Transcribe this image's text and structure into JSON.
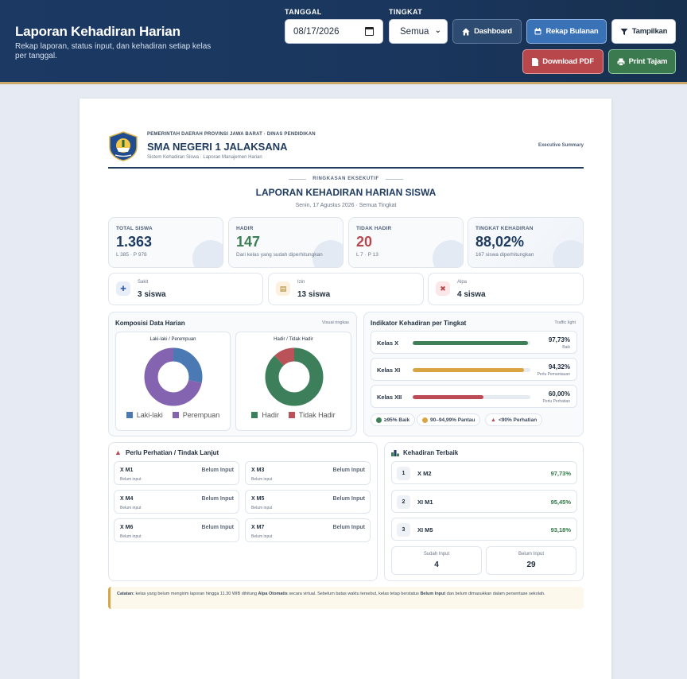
{
  "header": {
    "title": "Laporan Kehadiran Harian",
    "subtitle": "Rekap laporan, status input, dan kehadiran setiap kelas per tanggal.",
    "date_label": "TANGGAL",
    "date_value": "08/17/2026",
    "level_label": "TINGKAT",
    "level_value": "Semua",
    "buttons": {
      "dashboard": "Dashboard",
      "rekap": "Rekap Bulanan",
      "tampilkan": "Tampilkan",
      "pdf": "Download PDF",
      "print": "Print Tajam"
    }
  },
  "letterhead": {
    "agency": "PEMERINTAH DAERAH PROVINSI JAWA BARAT · DINAS PENDIDIKAN",
    "school": "SMA NEGERI 1 JALAKSANA",
    "system": "Sistem Kehadiran Siswa · Laporan Manajemen Harian",
    "tag": "Executive Summary"
  },
  "report": {
    "kicker": "RINGKASAN EKSEKUTIF",
    "title": "LAPORAN KEHADIRAN HARIAN SISWA",
    "subtitle": "Senin, 17 Agustus 2026 · Semua Tingkat"
  },
  "kpis": [
    {
      "label": "TOTAL SISWA",
      "value": "1.363",
      "sub": "L 385 · P 978",
      "color": "#1f3b60"
    },
    {
      "label": "HADIR",
      "value": "147",
      "sub": "Dari kelas yang sudah diperhitungkan",
      "color": "#3c7f55"
    },
    {
      "label": "TIDAK HADIR",
      "value": "20",
      "sub": "L 7 · P 13",
      "color": "#b5484c"
    },
    {
      "label": "TINGKAT KEHADIRAN",
      "value": "88,02%",
      "sub": "167 siswa diperhitungkan",
      "color": "#1f3b60"
    }
  ],
  "absence": [
    {
      "label": "Sakit",
      "value": "3 siswa",
      "icon": "medical-icon"
    },
    {
      "label": "Izin",
      "value": "13 siswa",
      "icon": "document-icon"
    },
    {
      "label": "Alpa",
      "value": "4 siswa",
      "icon": "user-x-icon"
    }
  ],
  "composition": {
    "title": "Komposisi Data Harian",
    "right": "Visual ringkas",
    "gender": {
      "title": "Laki-laki / Perempuan",
      "labels": [
        "Laki-laki",
        "Perempuan"
      ],
      "values": [
        385,
        978
      ],
      "colors": [
        "#4a79b4",
        "#8464b0"
      ]
    },
    "presence": {
      "title": "Hadir / Tidak Hadir",
      "labels": [
        "Hadir",
        "Tidak Hadir"
      ],
      "values": [
        147,
        20
      ],
      "colors": [
        "#3c7f5a",
        "#b95259"
      ]
    }
  },
  "indicators": {
    "title": "Indikator Kehadiran per Tingkat",
    "right": "Traffic light",
    "rows": [
      {
        "name": "Kelas X",
        "pct": "97,73%",
        "value": 97.73,
        "status": "Baik",
        "color": "#3f7f58"
      },
      {
        "name": "Kelas XI",
        "pct": "94,32%",
        "value": 94.32,
        "status": "Perlu Pemantauan",
        "color": "#d9a441"
      },
      {
        "name": "Kelas XII",
        "pct": "60,00%",
        "value": 60.0,
        "status": "Perlu Perhatian",
        "color": "#bc4b55"
      }
    ],
    "legend": [
      {
        "label": "≥95% Baik",
        "color": "#3f7f58"
      },
      {
        "label": "90–94,99% Pantau",
        "color": "#d9a441"
      },
      {
        "label": "<90% Perhatian",
        "color": "#bc4b55"
      }
    ]
  },
  "attention": {
    "title": "Perlu Perhatian / Tindak Lanjut",
    "items": [
      {
        "name": "X M1",
        "status": "Belum Input",
        "sub": "Belum input"
      },
      {
        "name": "X M3",
        "status": "Belum Input",
        "sub": "Belum input"
      },
      {
        "name": "X M4",
        "status": "Belum Input",
        "sub": "Belum input"
      },
      {
        "name": "X M5",
        "status": "Belum Input",
        "sub": "Belum input"
      },
      {
        "name": "X M6",
        "status": "Belum Input",
        "sub": "Belum input"
      },
      {
        "name": "X M7",
        "status": "Belum Input",
        "sub": "Belum input"
      }
    ]
  },
  "best": {
    "title": "Kehadiran Terbaik",
    "items": [
      {
        "rank": "1",
        "name": "X M2",
        "pct": "97,73%"
      },
      {
        "rank": "2",
        "name": "XI M1",
        "pct": "95,45%"
      },
      {
        "rank": "3",
        "name": "XI M5",
        "pct": "93,18%"
      }
    ],
    "stats": [
      {
        "label": "Sudah Input",
        "value": "4"
      },
      {
        "label": "Belum Input",
        "value": "29"
      }
    ]
  },
  "note": {
    "label": "Catatan:",
    "t1": " kelas yang belum mengirim laporan hingga 11.30 WIB dihitung ",
    "b1": "Alpa Otomatis",
    "t2": " secara virtual. Sebelum batas waktu tersebut, kelas tetap berstatus ",
    "b2": "Belum Input",
    "t3": " dan belum dimasukkan dalam persentase sekolah."
  }
}
